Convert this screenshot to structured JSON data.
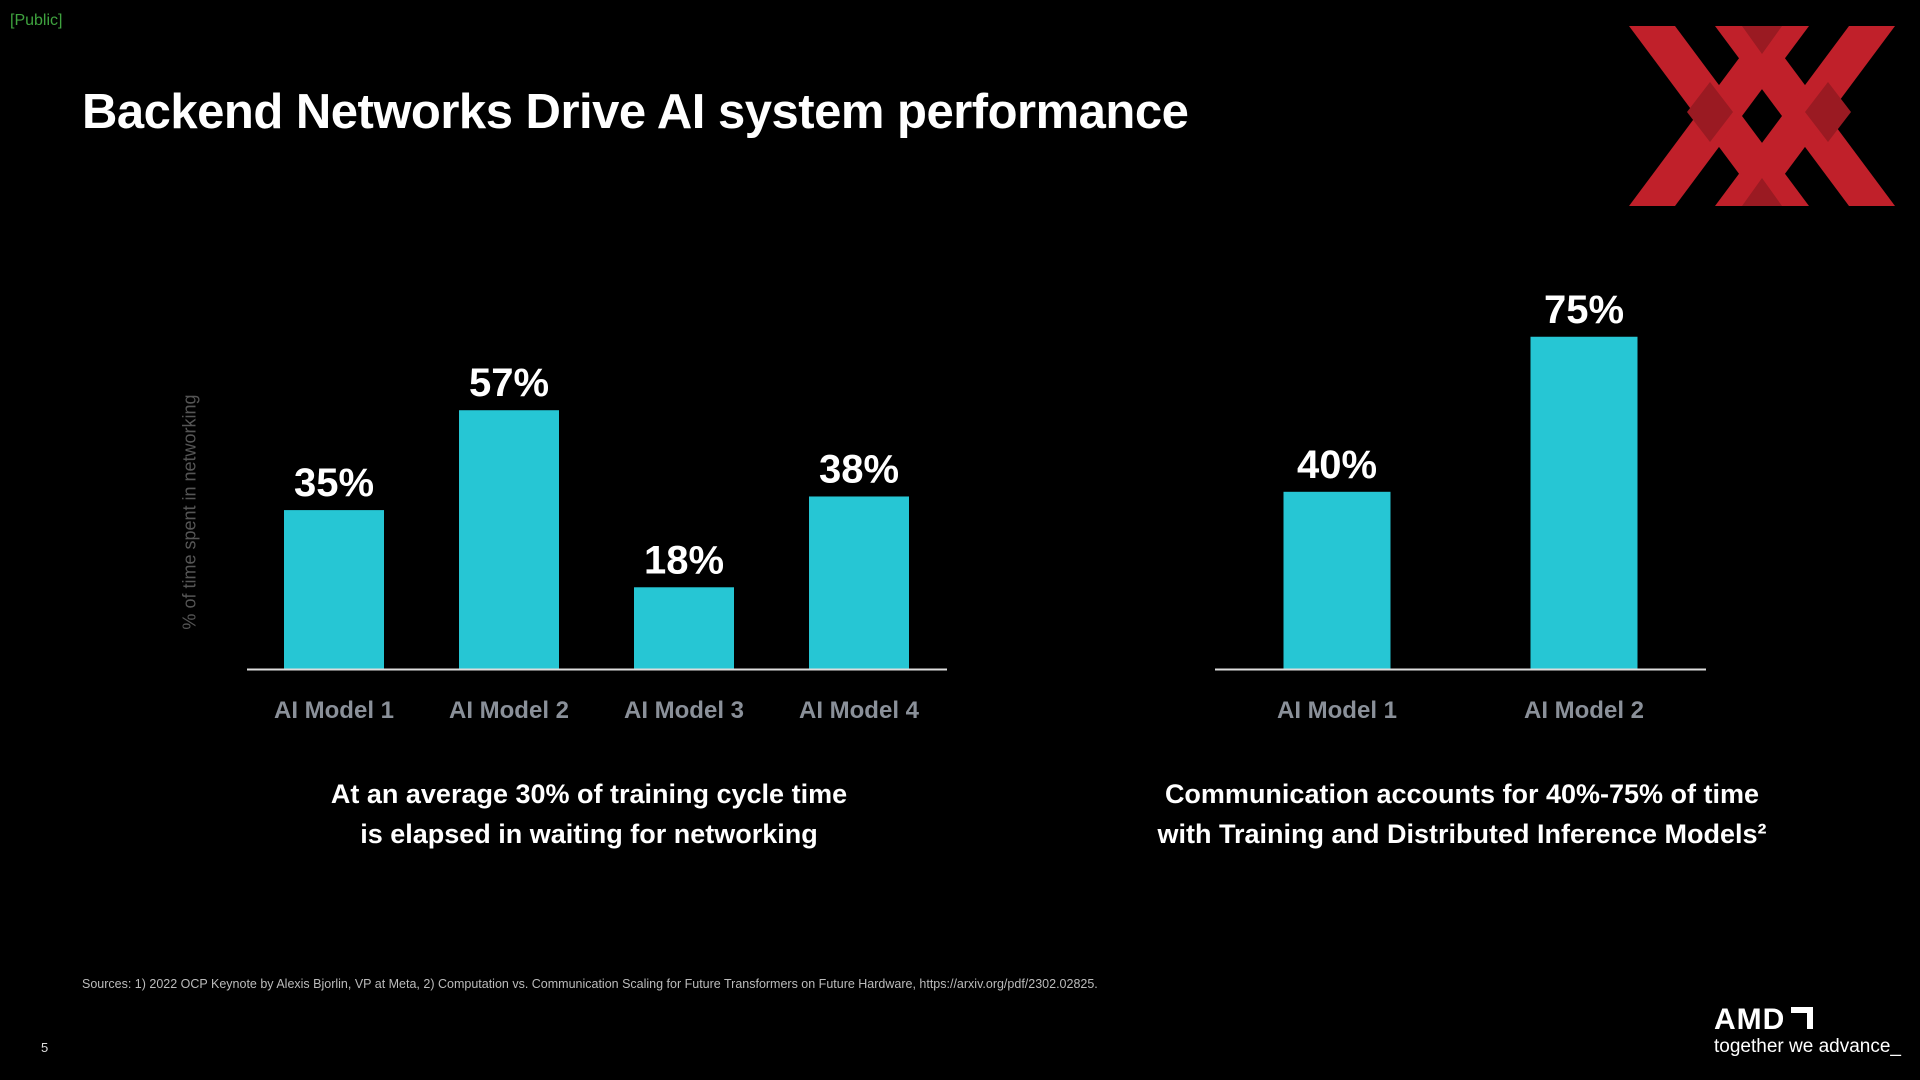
{
  "header": {
    "classification": "[Public]",
    "title": "Backend Networks Drive AI system performance"
  },
  "chart_data": [
    {
      "type": "bar",
      "ylabel": "% of time spent in networking",
      "categories": [
        "AI Model 1",
        "AI Model 2",
        "AI Model 3",
        "AI Model 4"
      ],
      "values": [
        35,
        57,
        18,
        38
      ],
      "data_labels": [
        "35%",
        "57%",
        "18%",
        "38%"
      ],
      "ylim": [
        0,
        60
      ],
      "grid": false,
      "caption": [
        "At an average 30% of training cycle time",
        "is elapsed in waiting for networking"
      ]
    },
    {
      "type": "bar",
      "ylabel": "",
      "categories": [
        "AI Model 1",
        "AI Model 2"
      ],
      "values": [
        40,
        75
      ],
      "data_labels": [
        "40%",
        "75%"
      ],
      "ylim": [
        0,
        80
      ],
      "grid": false,
      "caption": [
        "Communication accounts for 40%-75% of time",
        "with Training and Distributed Inference Models²"
      ]
    }
  ],
  "colors": {
    "bar": "#26C6D4",
    "logo_red": "#C0202A",
    "logo_dark": "#9A1A22",
    "public": "#3FA33F"
  },
  "footer": {
    "sources": "Sources: 1) 2022 OCP Keynote by Alexis Bjorlin, VP at Meta, 2) Computation vs. Communication Scaling for Future Transformers on Future Hardware, https://arxiv.org/pdf/2302.02825.",
    "page_number": "5",
    "brand": "AMD",
    "tagline": "together we advance_"
  }
}
